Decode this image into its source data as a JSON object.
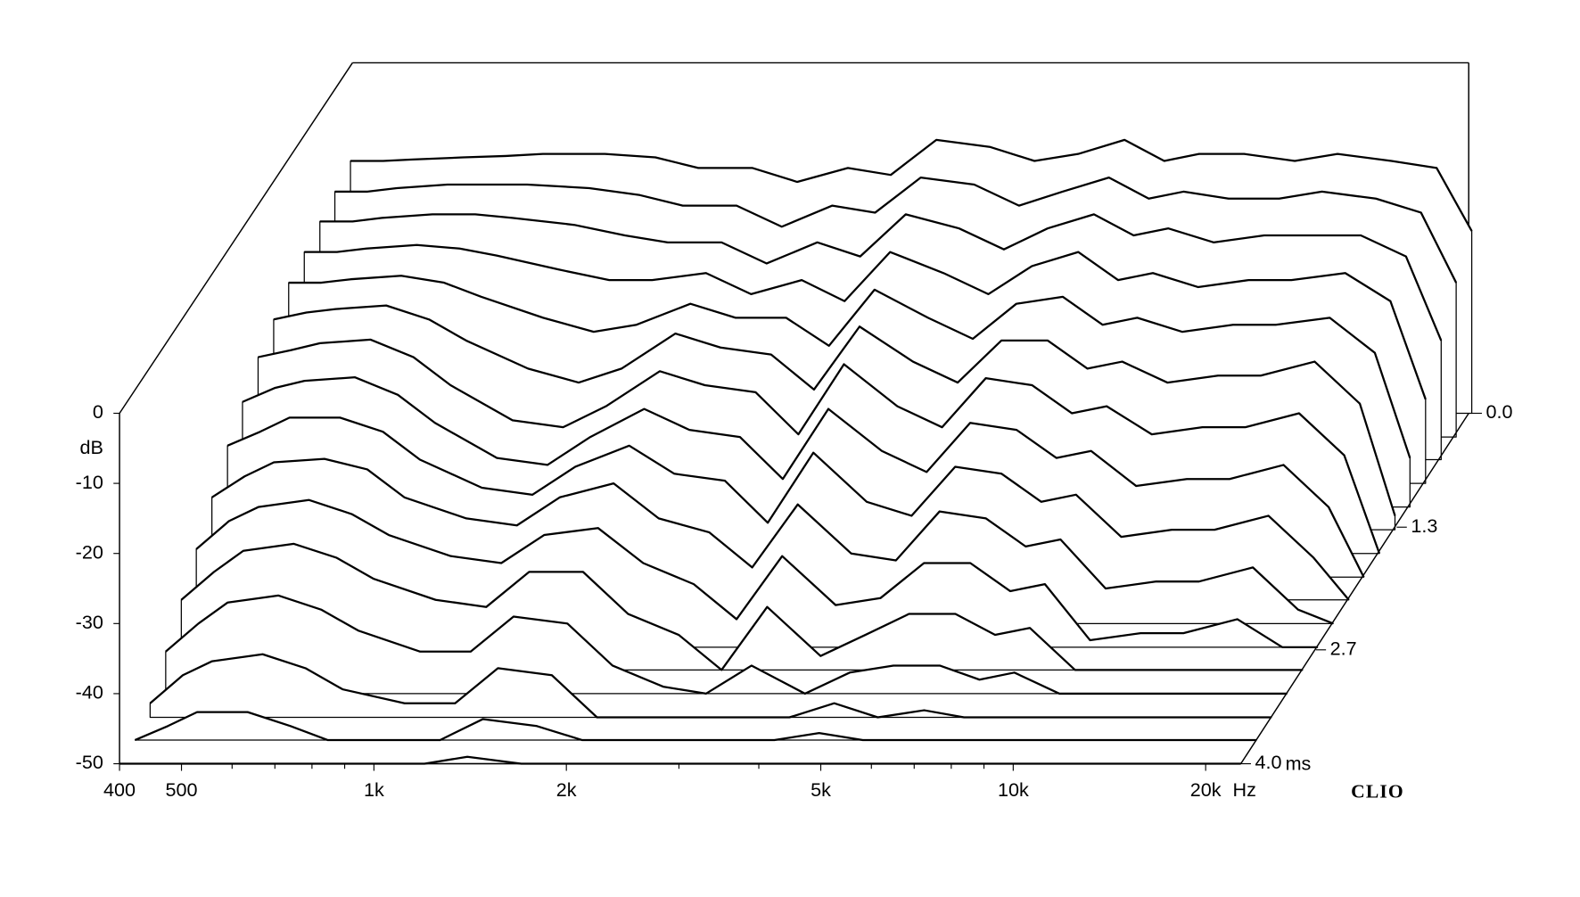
{
  "chart_data": {
    "type": "waterfall",
    "y_label": "dB",
    "x_unit": "Hz",
    "z_unit": "ms",
    "brand": "CLIO",
    "xscale": "log",
    "x": [
      400,
      450,
      500,
      600,
      700,
      800,
      1000,
      1200,
      1400,
      1700,
      2000,
      2400,
      2800,
      3300,
      4000,
      4700,
      5500,
      6500,
      7500,
      8500,
      10000,
      12000,
      14000,
      17000,
      20000,
      22700
    ],
    "xlim": [
      400,
      22700
    ],
    "xticks": [
      400,
      500,
      {
        "value": 1000,
        "label": "1k"
      },
      {
        "value": 2000,
        "label": "2k"
      },
      {
        "value": 5000,
        "label": "5k"
      },
      {
        "value": 10000,
        "label": "10k"
      },
      {
        "value": 20000,
        "label": "20k"
      }
    ],
    "xminorticks": [
      600,
      700,
      800,
      900,
      3000,
      4000,
      6000,
      7000,
      8000,
      9000
    ],
    "ylim": [
      -50,
      0
    ],
    "yticks": [
      0,
      -10,
      -20,
      -30,
      -40,
      -50
    ],
    "zlim": [
      0,
      4
    ],
    "zticks": [
      {
        "value": 0,
        "label": "0.0"
      },
      1.3,
      2.7,
      {
        "value": 4,
        "label": "4.0"
      }
    ],
    "line_color": "#000000",
    "fill_color": "#ffffff",
    "series": [
      {
        "time": 0,
        "values": [
          -14,
          -14,
          -13.8,
          -13.5,
          -13.3,
          -13,
          -13,
          -13.5,
          -15,
          -15,
          -17,
          -15,
          -16,
          -11,
          -12,
          -14,
          -13,
          -11,
          -14,
          -13,
          -13,
          -14,
          -13,
          -14,
          -15,
          -24
        ]
      },
      {
        "time": 0.27,
        "values": [
          -15,
          -15,
          -14.5,
          -14,
          -14,
          -14,
          -14.5,
          -15.5,
          -17,
          -17,
          -20,
          -17,
          -18,
          -13,
          -14,
          -17,
          -15,
          -13,
          -16,
          -15,
          -16,
          -16,
          -15,
          -16,
          -18,
          -28
        ]
      },
      {
        "time": 0.53,
        "values": [
          -16,
          -16,
          -15.5,
          -15,
          -15,
          -15.5,
          -16.5,
          -18,
          -19,
          -19,
          -22,
          -19,
          -21,
          -15,
          -17,
          -20,
          -17,
          -15,
          -18,
          -17,
          -19,
          -18,
          -18,
          -18,
          -21,
          -33
        ]
      },
      {
        "time": 0.8,
        "values": [
          -17,
          -17,
          -16.5,
          -16,
          -16.5,
          -17.5,
          -19.5,
          -21,
          -21,
          -20,
          -23,
          -21,
          -24,
          -17,
          -20,
          -23,
          -19,
          -17,
          -21,
          -20,
          -22,
          -21,
          -21,
          -20,
          -24,
          -38
        ]
      },
      {
        "time": 1.07,
        "values": [
          -18,
          -18,
          -17.5,
          -17,
          -18,
          -20,
          -23,
          -25,
          -24,
          -21,
          -23,
          -23,
          -27,
          -19,
          -23,
          -26,
          -21,
          -20,
          -24,
          -23,
          -25,
          -24,
          -24,
          -23,
          -28,
          -43
        ]
      },
      {
        "time": 1.33,
        "values": [
          -20,
          -19,
          -18.5,
          -18,
          -20,
          -23,
          -27,
          -29,
          -27,
          -22,
          -24,
          -25,
          -30,
          -21,
          -26,
          -29,
          -23,
          -23,
          -27,
          -26,
          -29,
          -28,
          -28,
          -26,
          -32,
          -48
        ]
      },
      {
        "time": 1.6,
        "values": [
          -22,
          -21,
          -20,
          -19.5,
          -22,
          -26,
          -31,
          -32,
          -29,
          -24,
          -26,
          -27,
          -33,
          -23,
          -29,
          -32,
          -25,
          -26,
          -30,
          -29,
          -33,
          -32,
          -32,
          -30,
          -36,
          -50
        ]
      },
      {
        "time": 1.87,
        "values": [
          -25,
          -23,
          -22,
          -21.5,
          -24,
          -28,
          -33,
          -34,
          -30,
          -26,
          -29,
          -30,
          -36,
          -26,
          -32,
          -35,
          -28,
          -29,
          -33,
          -32,
          -37,
          -36,
          -36,
          -34,
          -40,
          -50
        ]
      },
      {
        "time": 2.13,
        "values": [
          -28,
          -26,
          -24,
          -24,
          -26,
          -30,
          -34,
          -35,
          -31,
          -28,
          -32,
          -33,
          -39,
          -29,
          -36,
          -38,
          -31,
          -32,
          -36,
          -35,
          -41,
          -40,
          -40,
          -38,
          -44,
          -50
        ]
      },
      {
        "time": 2.4,
        "values": [
          -32,
          -29,
          -27,
          -26.5,
          -28,
          -32,
          -35,
          -36,
          -32,
          -30,
          -35,
          -37,
          -42,
          -33,
          -40,
          -41,
          -34,
          -35,
          -39,
          -38,
          -45,
          -44,
          -44,
          -42,
          -48,
          -50
        ]
      },
      {
        "time": 2.67,
        "values": [
          -36,
          -32,
          -30,
          -29,
          -31,
          -34,
          -37,
          -38,
          -34,
          -33,
          -38,
          -41,
          -46,
          -37,
          -44,
          -43,
          -38,
          -38,
          -42,
          -41,
          -49,
          -48,
          -48,
          -46,
          -50,
          -50
        ]
      },
      {
        "time": 2.93,
        "values": [
          -40,
          -36,
          -33,
          -32,
          -34,
          -37,
          -40,
          -41,
          -36,
          -36,
          -42,
          -45,
          -50,
          -41,
          -48,
          -45,
          -42,
          -42,
          -45,
          -44,
          -50,
          -50,
          -50,
          -50,
          -50,
          -50
        ]
      },
      {
        "time": 3.2,
        "values": [
          -44,
          -40,
          -37,
          -36,
          -38,
          -41,
          -44,
          -44,
          -39,
          -40,
          -46,
          -49,
          -50,
          -46,
          -50,
          -47,
          -46,
          -46,
          -48,
          -47,
          -50,
          -50,
          -50,
          -50,
          -50,
          -50
        ]
      },
      {
        "time": 3.47,
        "values": [
          -48,
          -44,
          -42,
          -41,
          -43,
          -46,
          -48,
          -48,
          -43,
          -44,
          -50,
          -50,
          -50,
          -50,
          -50,
          -48,
          -50,
          -49,
          -50,
          -50,
          -50,
          -50,
          -50,
          -50,
          -50,
          -50
        ]
      },
      {
        "time": 3.73,
        "values": [
          -50,
          -48,
          -46,
          -46,
          -48,
          -50,
          -50,
          -50,
          -47,
          -48,
          -50,
          -50,
          -50,
          -50,
          -50,
          -49,
          -50,
          -50,
          -50,
          -50,
          -50,
          -50,
          -50,
          -50,
          -50,
          -50
        ]
      },
      {
        "time": 4,
        "values": [
          -50,
          -50,
          -50,
          -50,
          -50,
          -50,
          -50,
          -50,
          -49,
          -50,
          -50,
          -50,
          -50,
          -50,
          -50,
          -50,
          -50,
          -50,
          -50,
          -50,
          -50,
          -50,
          -50,
          -50,
          -50,
          -50
        ]
      }
    ]
  }
}
